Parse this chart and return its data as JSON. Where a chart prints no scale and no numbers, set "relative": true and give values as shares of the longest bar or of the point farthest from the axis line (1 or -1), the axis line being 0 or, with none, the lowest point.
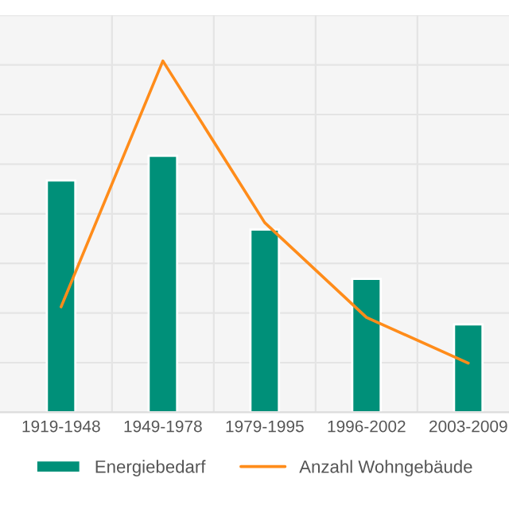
{
  "chart_data": {
    "type": "bar",
    "relative": true,
    "categories": [
      "1919-1948",
      "1949-1978",
      "1979-1995",
      "1996-2002",
      "2003-2009"
    ],
    "series": [
      {
        "name": "Energiebedarf",
        "color": "#009079",
        "values": [
          0.66,
          0.73,
          0.52,
          0.38,
          0.25
        ]
      },
      {
        "name": "Anzahl Wohngebäude",
        "type": "line",
        "color": "#ff8c1a",
        "values": [
          0.3,
          1.0,
          0.54,
          0.27,
          0.14
        ]
      }
    ],
    "grid": true,
    "legend": "bottom",
    "tick_labels": "x"
  }
}
